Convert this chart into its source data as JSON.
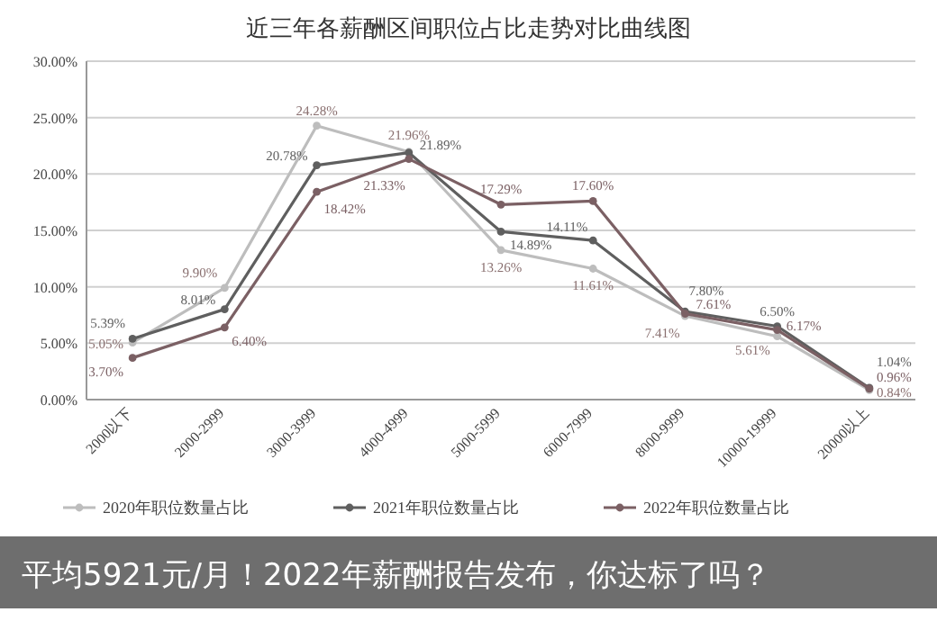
{
  "chart_data": {
    "type": "line",
    "title": "近三年各薪酬区间职位占比走势对比曲线图",
    "categories": [
      "2000以下",
      "2000-2999",
      "3000-3999",
      "4000-4999",
      "5000-5999",
      "6000-7999",
      "8000-9999",
      "10000-19999",
      "20000以上"
    ],
    "series": [
      {
        "name": "2020年职位数量占比",
        "color": "#bdbdbd",
        "values": [
          5.05,
          9.9,
          24.28,
          21.96,
          13.26,
          11.61,
          7.41,
          5.61,
          0.84
        ],
        "value_labels": [
          "5.05%",
          "9.90%",
          "24.28%",
          "21.96%",
          "13.26%",
          "11.61%",
          "7.41%",
          "5.61%",
          "0.84%"
        ]
      },
      {
        "name": "2021年职位数量占比",
        "color": "#5f5f5f",
        "values": [
          5.39,
          8.01,
          20.78,
          21.89,
          14.89,
          14.11,
          7.8,
          6.5,
          1.04
        ],
        "value_labels": [
          "5.39%",
          "8.01%",
          "20.78%",
          "21.89%",
          "14.89%",
          "14.11%",
          "7.80%",
          "6.50%",
          "1.04%"
        ]
      },
      {
        "name": "2022年职位数量占比",
        "color": "#7b6064",
        "values": [
          3.7,
          6.4,
          18.42,
          21.33,
          17.29,
          17.6,
          7.61,
          6.17,
          0.96
        ],
        "value_labels": [
          "3.70%",
          "6.40%",
          "18.42%",
          "21.33%",
          "17.29%",
          "17.60%",
          "7.61%",
          "6.17%",
          "0.96%"
        ]
      }
    ],
    "ylim": [
      0,
      30
    ],
    "yticks": [
      {
        "value": 0,
        "label": "0.00%"
      },
      {
        "value": 5,
        "label": "5.00%"
      },
      {
        "value": 10,
        "label": "10.00%"
      },
      {
        "value": 15,
        "label": "15.00%"
      },
      {
        "value": 20,
        "label": "20.00%"
      },
      {
        "value": 25,
        "label": "25.00%"
      },
      {
        "value": 30,
        "label": "30.00%"
      }
    ],
    "grid": "y",
    "legend": "bottom",
    "marker": "circle",
    "line_style": "solid",
    "annotations": [
      "平均5921元/月！2022年薪酬报告发布，你达标了吗？"
    ]
  }
}
